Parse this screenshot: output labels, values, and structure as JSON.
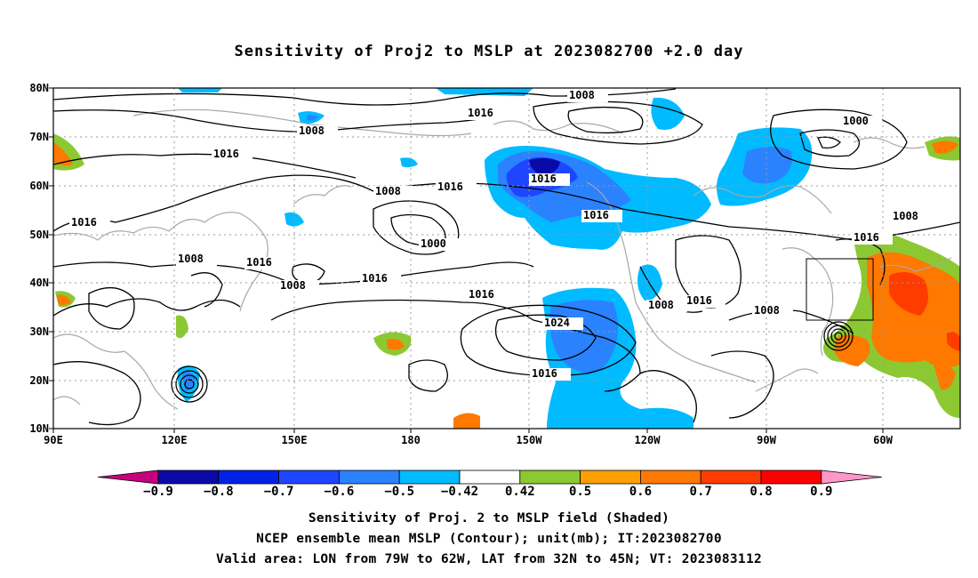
{
  "title": "Sensitivity of Proj2 to MSLP at 2023082700 +2.0 day",
  "lat_labels": [
    "80N",
    "70N",
    "60N",
    "50N",
    "40N",
    "30N",
    "20N",
    "10N"
  ],
  "lon_labels": [
    "90E",
    "120E",
    "150E",
    "180",
    "150W",
    "120W",
    "90W",
    "60W"
  ],
  "isobar_labels": [
    {
      "text": "1008",
      "icon": "contour-label"
    },
    {
      "text": "1016",
      "icon": "contour-label"
    },
    {
      "text": "1000",
      "icon": "contour-label"
    },
    {
      "text": "1024",
      "icon": "contour-label"
    }
  ],
  "contour_values_printed": [
    "1000",
    "1008",
    "1016",
    "1024"
  ],
  "colorbar": {
    "ticks": [
      "−0.9",
      "−0.8",
      "−0.7",
      "−0.6",
      "−0.5",
      "−0.42",
      "0.42",
      "0.5",
      "0.6",
      "0.7",
      "0.8",
      "0.9"
    ],
    "colors": [
      "#c8007e",
      "#0a0aa8",
      "#0022e6",
      "#1e46ff",
      "#2b82ff",
      "#00bbff",
      "#ffffff",
      "#8cc832",
      "#ffa000",
      "#ff7800",
      "#ff3c00",
      "#ff0000",
      "#ff96c8"
    ]
  },
  "valid_box": {
    "lon_from": "79W",
    "lon_to": "62W",
    "lat_from": "32N",
    "lat_to": "45N"
  },
  "captions": [
    "Sensitivity of Proj. 2 to MSLP field (Shaded)",
    "NCEP ensemble mean MSLP (Contour); unit(mb); IT:2023082700",
    "Valid area: LON from 79W to 62W, LAT from 32N to 45N; VT: 2023083112"
  ],
  "colors": {
    "negative_strong": "#0022e6",
    "negative_mid": "#2b82ff",
    "negative_light": "#00bbff",
    "positive_light": "#8cc832",
    "positive_mid": "#ff7800",
    "coastline": "#a8a8a8",
    "contour": "#000000"
  }
}
